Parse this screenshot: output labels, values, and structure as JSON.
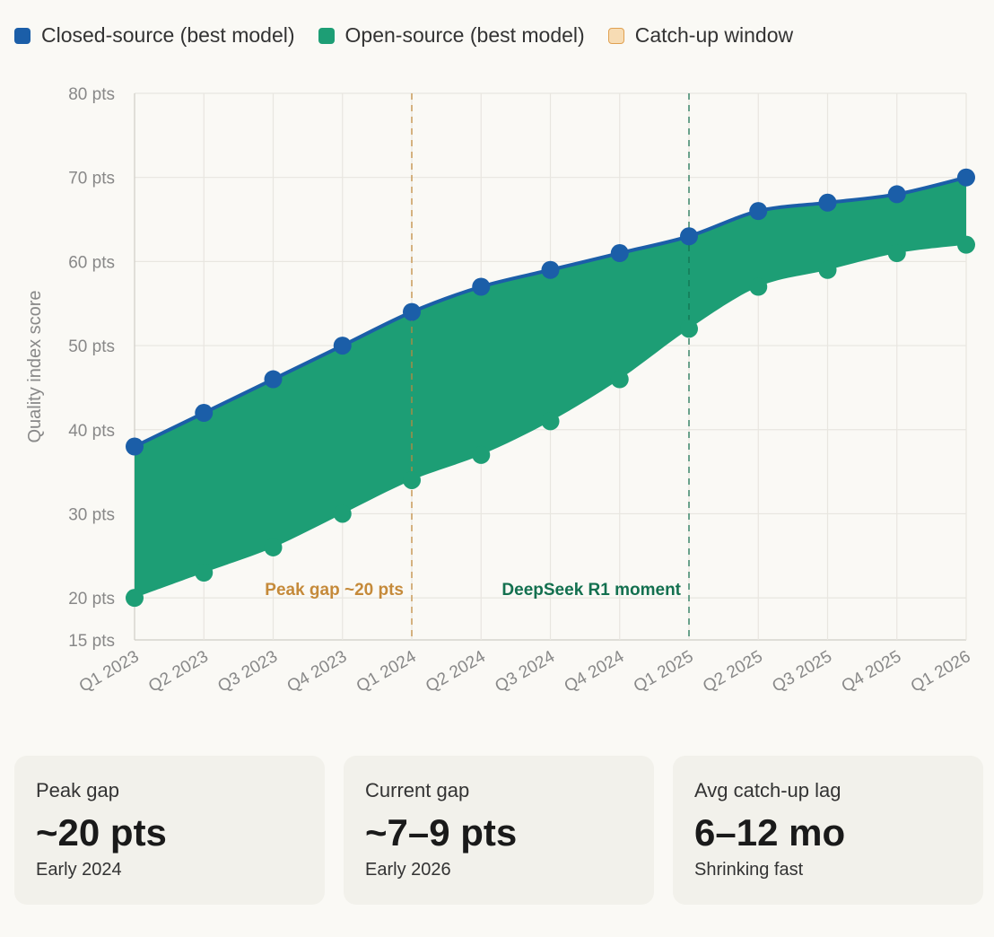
{
  "legend": [
    {
      "label": "Closed-source (best model)",
      "color": "#1b5ea8",
      "style": "solid"
    },
    {
      "label": "Open-source (best model)",
      "color": "#1d9e75",
      "style": "solid"
    },
    {
      "label": "Catch-up window",
      "color": "#f7dcb4",
      "border": "#e0a050",
      "style": "outline"
    }
  ],
  "chart_data": {
    "type": "area",
    "title": "",
    "xlabel": "",
    "ylabel": "Quality index score",
    "ylim": [
      15,
      80
    ],
    "yticks": [
      15,
      20,
      30,
      40,
      50,
      60,
      70,
      80
    ],
    "ytick_suffix": " pts",
    "grid": true,
    "categories": [
      "Q1 2023",
      "Q2 2023",
      "Q3 2023",
      "Q4 2023",
      "Q1 2024",
      "Q2 2024",
      "Q3 2024",
      "Q4 2024",
      "Q1 2025",
      "Q2 2025",
      "Q3 2025",
      "Q4 2025",
      "Q1 2026"
    ],
    "series": [
      {
        "name": "Closed-source (best model)",
        "color": "#1b5ea8",
        "values": [
          38,
          42,
          46,
          50,
          54,
          57,
          59,
          61,
          63,
          66,
          67,
          68,
          70
        ]
      },
      {
        "name": "Open-source (best model)",
        "color": "#1d9e75",
        "values": [
          20,
          23,
          26,
          30,
          34,
          37,
          41,
          46,
          52,
          57,
          59,
          61,
          62
        ]
      }
    ],
    "fill_between_color": "#1d9e75",
    "annotations": [
      {
        "x": "Q1 2024",
        "label": "Peak gap ~20 pts",
        "color": "#c58a3a"
      },
      {
        "x": "Q1 2025",
        "label": "DeepSeek R1 moment",
        "color": "#13704f"
      }
    ]
  },
  "cards": [
    {
      "label": "Peak gap",
      "value": "~20 pts",
      "sub": "Early 2024"
    },
    {
      "label": "Current gap",
      "value": "~7–9 pts",
      "sub": "Early 2026"
    },
    {
      "label": "Avg catch-up lag",
      "value": "6–12 mo",
      "sub": "Shrinking fast"
    }
  ]
}
